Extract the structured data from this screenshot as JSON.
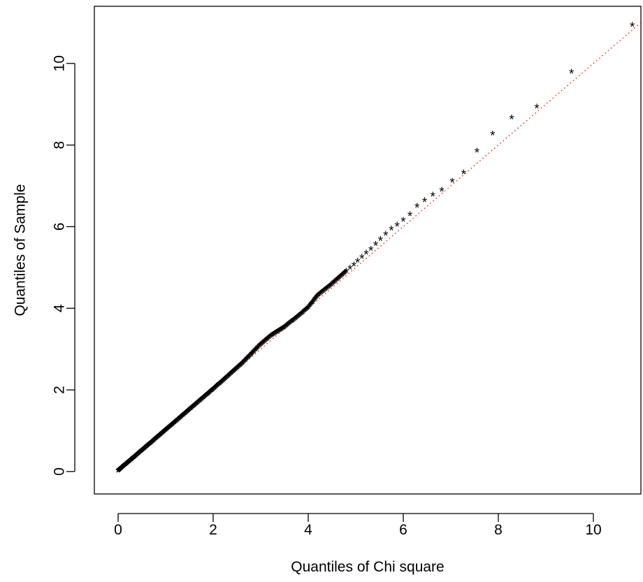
{
  "chart_data": {
    "type": "scatter",
    "title": "",
    "xlabel": "Quantiles of Chi square",
    "ylabel": "Quantiles of Sample",
    "xlim": [
      -0.5,
      11
    ],
    "ylim": [
      -0.55,
      11.4
    ],
    "xticks": [
      0,
      2,
      4,
      6,
      8,
      10
    ],
    "yticks": [
      0,
      2,
      4,
      6,
      8,
      10
    ],
    "xtick_labels": [
      "0",
      "2",
      "4",
      "6",
      "8",
      "10"
    ],
    "ytick_labels": [
      "0",
      "2",
      "4",
      "6",
      "8",
      "10"
    ],
    "grid": false,
    "marker": "*",
    "marker_color": "#000000",
    "reference_line": {
      "style": "dotted",
      "color": "#ff0000",
      "x": [
        0,
        11
      ],
      "y": [
        0,
        11
      ]
    },
    "outer_points": [
      {
        "x": 10.82,
        "y": 10.92
      },
      {
        "x": 9.54,
        "y": 9.77
      },
      {
        "x": 8.81,
        "y": 8.92
      },
      {
        "x": 8.28,
        "y": 8.65
      },
      {
        "x": 7.88,
        "y": 8.26
      },
      {
        "x": 7.55,
        "y": 7.84
      },
      {
        "x": 7.27,
        "y": 7.31
      },
      {
        "x": 7.03,
        "y": 7.1
      },
      {
        "x": 6.81,
        "y": 6.88
      },
      {
        "x": 6.62,
        "y": 6.76
      },
      {
        "x": 6.45,
        "y": 6.62
      },
      {
        "x": 6.29,
        "y": 6.49
      },
      {
        "x": 6.14,
        "y": 6.28
      },
      {
        "x": 6.0,
        "y": 6.14
      },
      {
        "x": 5.87,
        "y": 6.02
      },
      {
        "x": 5.75,
        "y": 5.93
      },
      {
        "x": 5.63,
        "y": 5.8
      },
      {
        "x": 5.52,
        "y": 5.67
      },
      {
        "x": 5.42,
        "y": 5.55
      },
      {
        "x": 5.32,
        "y": 5.43
      },
      {
        "x": 5.22,
        "y": 5.34
      },
      {
        "x": 5.13,
        "y": 5.24
      },
      {
        "x": 5.04,
        "y": 5.14
      },
      {
        "x": 4.96,
        "y": 5.05
      },
      {
        "x": 4.88,
        "y": 4.97
      },
      {
        "x": 4.8,
        "y": 4.89
      }
    ],
    "dense_curve": [
      {
        "x": 0.0,
        "y": 0.0
      },
      {
        "x": 1.0,
        "y": 1.0
      },
      {
        "x": 2.0,
        "y": 2.0
      },
      {
        "x": 2.6,
        "y": 2.62
      },
      {
        "x": 3.0,
        "y": 3.1
      },
      {
        "x": 3.2,
        "y": 3.3
      },
      {
        "x": 3.5,
        "y": 3.52
      },
      {
        "x": 3.85,
        "y": 3.85
      },
      {
        "x": 4.0,
        "y": 4.0
      },
      {
        "x": 4.2,
        "y": 4.3
      },
      {
        "x": 4.5,
        "y": 4.58
      },
      {
        "x": 4.8,
        "y": 4.89
      }
    ],
    "dense_count": 320
  }
}
